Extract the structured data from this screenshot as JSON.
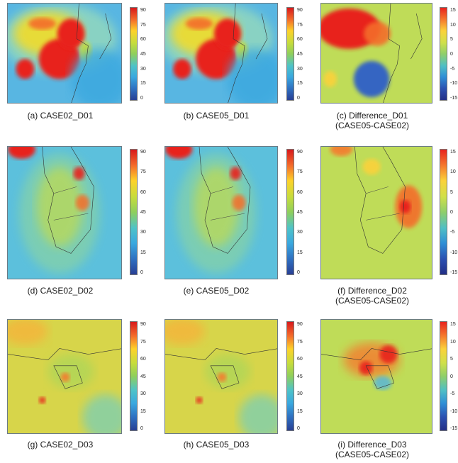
{
  "panels": [
    {
      "caption": "(a) CASE02_D01",
      "caption2": "",
      "scale": "abs",
      "region": "d01",
      "ticks": [
        "90",
        "75",
        "60",
        "45",
        "30",
        "15",
        "0"
      ]
    },
    {
      "caption": "(b) CASE05_D01",
      "caption2": "",
      "scale": "abs",
      "region": "d01",
      "ticks": [
        "90",
        "75",
        "60",
        "45",
        "30",
        "15",
        "0"
      ]
    },
    {
      "caption": "(c) Difference_D01",
      "caption2": "(CASE05-CASE02)",
      "scale": "diff",
      "region": "d01",
      "ticks": [
        "15",
        "10",
        "5",
        "0",
        "-5",
        "-10",
        "-15"
      ]
    },
    {
      "caption": "(d) CASE02_D02",
      "caption2": "",
      "scale": "abs",
      "region": "d02",
      "ticks": [
        "90",
        "75",
        "60",
        "45",
        "30",
        "15",
        "0"
      ]
    },
    {
      "caption": "(e) CASE05_D02",
      "caption2": "",
      "scale": "abs",
      "region": "d02",
      "ticks": [
        "90",
        "75",
        "60",
        "45",
        "30",
        "15",
        "0"
      ]
    },
    {
      "caption": "(f) Difference_D02",
      "caption2": "(CASE05-CASE02)",
      "scale": "diff",
      "region": "d02",
      "ticks": [
        "15",
        "10",
        "5",
        "0",
        "-5",
        "-10",
        "-15"
      ]
    },
    {
      "caption": "(g) CASE02_D03",
      "caption2": "",
      "scale": "abs",
      "region": "d03",
      "ticks": [
        "90",
        "75",
        "60",
        "45",
        "30",
        "15",
        "0"
      ]
    },
    {
      "caption": "(h) CASE05_D03",
      "caption2": "",
      "scale": "abs",
      "region": "d03",
      "ticks": [
        "90",
        "75",
        "60",
        "45",
        "30",
        "15",
        "0"
      ]
    },
    {
      "caption": "(i) Difference_D03",
      "caption2": "(CASE05-CASE02)",
      "scale": "diff",
      "region": "d03",
      "ticks": [
        "15",
        "10",
        "5",
        "0",
        "-5",
        "-10",
        "-15"
      ]
    }
  ],
  "colors": {
    "abs_bar": [
      "#d7191c",
      "#f46d2b",
      "#fdd22a",
      "#c6dc3c",
      "#8fcf5c",
      "#4ec3c8",
      "#3aa8df",
      "#2f6fc0",
      "#283f94"
    ],
    "diff_bar": [
      "#e8231e",
      "#f57a2d",
      "#fbd23a",
      "#cfe04a",
      "#8fcf6a",
      "#4fbfc5",
      "#2f8fd6",
      "#2b4fb0",
      "#232f86"
    ],
    "ocean_d01": "#58b6e2",
    "land_low": "#7fcfb0",
    "high": "#e8231e",
    "mid": "#f2dc2c",
    "diff_bg": "#bfdc58",
    "diff_neg": "#2f5fc8"
  }
}
